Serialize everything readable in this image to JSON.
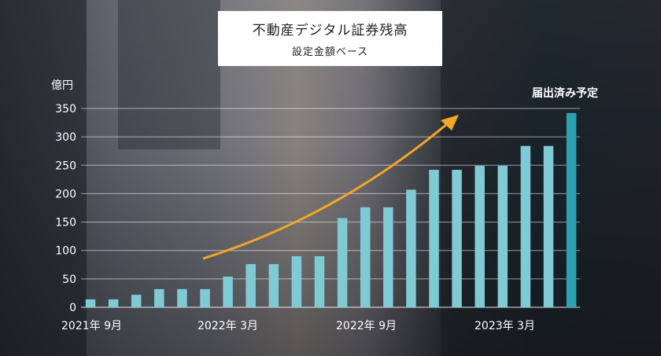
{
  "header": {
    "title": "不動産デジタル証券残高",
    "subtitle": "設定金額ベース"
  },
  "colors": {
    "bar": "#7ecbd6",
    "highlight_bar": "#2aa3b0",
    "arrow": "#f5a623",
    "gridline": "#ffffff"
  },
  "chart_data": {
    "type": "bar",
    "ylabel": "億円",
    "ylim": [
      0,
      350
    ],
    "yticks": [
      0,
      50,
      100,
      150,
      200,
      250,
      300,
      350
    ],
    "xtick_labels": [
      "2021年 9月",
      "2022年 3月",
      "2022年 9月",
      "2023年 3月"
    ],
    "values": [
      14,
      14,
      22,
      32,
      32,
      32,
      54,
      76,
      76,
      90,
      90,
      157,
      176,
      176,
      207,
      242,
      242,
      249,
      249,
      284,
      284,
      342
    ],
    "highlight_label": "届出済み予定",
    "grid": true
  }
}
